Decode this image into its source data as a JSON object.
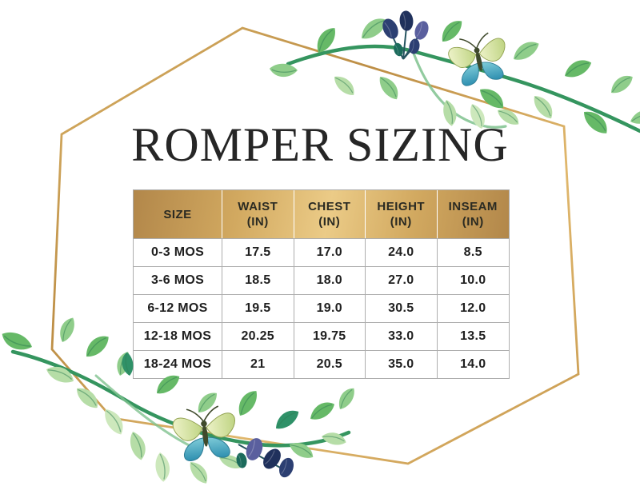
{
  "page": {
    "title": "ROMPER SIZING"
  },
  "colors": {
    "title_color": "#262626",
    "text_dark": "#1f1f1f",
    "table_border": "#adadad",
    "header_gold_dark": "#b2874a",
    "header_gold_mid": "#d2a960",
    "header_gold_light": "#ebcb87",
    "frame_gold": "#c7994f",
    "frame_gold_light": "#e0b76c",
    "stem_green": "#35955f",
    "stem_green_light": "#7fc28e",
    "leaf_green": "#66b967",
    "leaf_green_mid": "#8fcd8a",
    "leaf_green_pale": "#b6dda7",
    "leaf_green_palest": "#cde8bc",
    "leaf_teal": "#2f9168",
    "berry_navy": "#2c3f72",
    "berry_ink": "#20315c",
    "berry_blue": "#5a5f9e",
    "berry_teal": "#1c6b5c",
    "butterfly_wing_teal": "#4fafc5",
    "butterfly_wing_pale": "#dce6aa",
    "butterfly_body": "#3f4a2c"
  },
  "chart_data": {
    "type": "table",
    "title": "ROMPER SIZING",
    "columns": [
      {
        "label": "SIZE",
        "unit": ""
      },
      {
        "label": "WAIST",
        "unit": "(IN)"
      },
      {
        "label": "CHEST",
        "unit": "(IN)"
      },
      {
        "label": "HEIGHT",
        "unit": "(IN)"
      },
      {
        "label": "INSEAM",
        "unit": "(IN)"
      }
    ],
    "rows": [
      [
        "0-3 MOS",
        "17.5",
        "17.0",
        "24.0",
        "8.5"
      ],
      [
        "3-6 MOS",
        "18.5",
        "18.0",
        "27.0",
        "10.0"
      ],
      [
        "6-12 MOS",
        "19.5",
        "19.0",
        "30.5",
        "12.0"
      ],
      [
        "12-18 MOS",
        "20.25",
        "19.75",
        "33.0",
        "13.5"
      ],
      [
        "18-24 MOS",
        "21",
        "20.5",
        "35.0",
        "14.0"
      ]
    ]
  },
  "decorations": {
    "frame": "gold-hexagon-frame",
    "top_right": "watercolor-branch-with-berries-and-butterfly",
    "bottom_left": "watercolor-branch-with-berries-and-butterfly"
  }
}
